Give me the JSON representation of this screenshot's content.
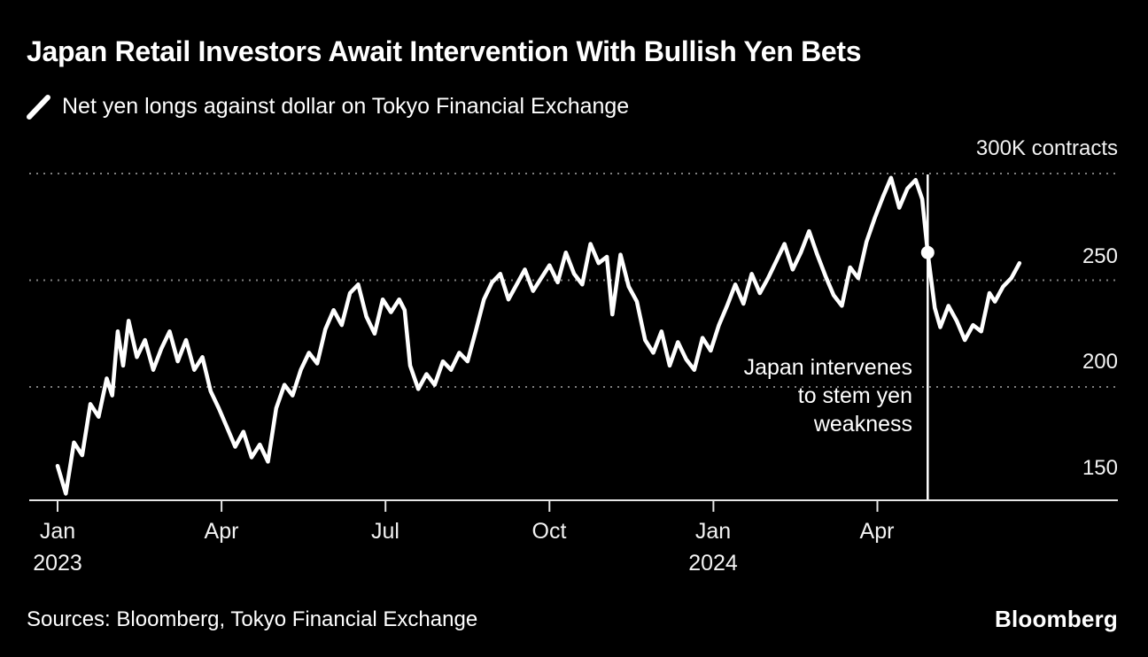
{
  "page": {
    "background": "#000000"
  },
  "header": {
    "title": "Japan Retail Investors Await Intervention With Bullish Yen Bets",
    "legend_label": "Net yen longs against dollar on Tokyo Financial Exchange"
  },
  "chart_data": {
    "type": "line",
    "title": "Japan Retail Investors Await Intervention With Bullish Yen Bets",
    "subtitle": "Net yen longs against dollar on Tokyo Financial Exchange",
    "unit": "K contracts",
    "x_unit": "months since 2023-01",
    "ylim": [
      146,
      305
    ],
    "grid_values": [
      300,
      250,
      200
    ],
    "yticks": [
      {
        "value": 300,
        "label": "300K contracts"
      },
      {
        "value": 250,
        "label": "250"
      },
      {
        "value": 200,
        "label": "200"
      },
      {
        "value": 150,
        "label": "150"
      }
    ],
    "xticks": [
      {
        "month": 0,
        "label": "Jan",
        "sublabel": "2023"
      },
      {
        "month": 3,
        "label": "Apr"
      },
      {
        "month": 6,
        "label": "Jul"
      },
      {
        "month": 9,
        "label": "Oct"
      },
      {
        "month": 12,
        "label": "Jan",
        "sublabel": "2024"
      },
      {
        "month": 15,
        "label": "Apr"
      }
    ],
    "series": [
      {
        "name": "Net yen longs against dollar",
        "points": [
          [
            0,
            163
          ],
          [
            0.15,
            150
          ],
          [
            0.3,
            174
          ],
          [
            0.45,
            168
          ],
          [
            0.6,
            192
          ],
          [
            0.75,
            186
          ],
          [
            0.9,
            204
          ],
          [
            1.0,
            196
          ],
          [
            1.1,
            226
          ],
          [
            1.2,
            210
          ],
          [
            1.3,
            231
          ],
          [
            1.45,
            214
          ],
          [
            1.6,
            222
          ],
          [
            1.75,
            208
          ],
          [
            1.9,
            218
          ],
          [
            2.05,
            226
          ],
          [
            2.2,
            212
          ],
          [
            2.35,
            222
          ],
          [
            2.5,
            208
          ],
          [
            2.65,
            214
          ],
          [
            2.8,
            198
          ],
          [
            2.95,
            190
          ],
          [
            3.1,
            181
          ],
          [
            3.25,
            172
          ],
          [
            3.4,
            179
          ],
          [
            3.55,
            167
          ],
          [
            3.7,
            173
          ],
          [
            3.85,
            165
          ],
          [
            4.0,
            190
          ],
          [
            4.15,
            201
          ],
          [
            4.3,
            196
          ],
          [
            4.45,
            208
          ],
          [
            4.6,
            216
          ],
          [
            4.75,
            211
          ],
          [
            4.9,
            227
          ],
          [
            5.05,
            236
          ],
          [
            5.2,
            229
          ],
          [
            5.35,
            244
          ],
          [
            5.5,
            248
          ],
          [
            5.65,
            233
          ],
          [
            5.8,
            225
          ],
          [
            5.95,
            241
          ],
          [
            6.1,
            235
          ],
          [
            6.25,
            241
          ],
          [
            6.35,
            236
          ],
          [
            6.45,
            210
          ],
          [
            6.6,
            199
          ],
          [
            6.75,
            206
          ],
          [
            6.9,
            201
          ],
          [
            7.05,
            212
          ],
          [
            7.2,
            208
          ],
          [
            7.35,
            216
          ],
          [
            7.5,
            212
          ],
          [
            7.65,
            226
          ],
          [
            7.8,
            241
          ],
          [
            7.95,
            249
          ],
          [
            8.1,
            253
          ],
          [
            8.25,
            241
          ],
          [
            8.4,
            248
          ],
          [
            8.55,
            255
          ],
          [
            8.7,
            245
          ],
          [
            8.85,
            251
          ],
          [
            9.0,
            257
          ],
          [
            9.15,
            249
          ],
          [
            9.3,
            263
          ],
          [
            9.45,
            253
          ],
          [
            9.6,
            248
          ],
          [
            9.75,
            267
          ],
          [
            9.9,
            258
          ],
          [
            10.05,
            261
          ],
          [
            10.15,
            234
          ],
          [
            10.3,
            262
          ],
          [
            10.45,
            247
          ],
          [
            10.6,
            240
          ],
          [
            10.75,
            222
          ],
          [
            10.9,
            216
          ],
          [
            11.05,
            226
          ],
          [
            11.2,
            210
          ],
          [
            11.35,
            221
          ],
          [
            11.5,
            213
          ],
          [
            11.65,
            208
          ],
          [
            11.8,
            223
          ],
          [
            11.95,
            217
          ],
          [
            12.1,
            229
          ],
          [
            12.25,
            238
          ],
          [
            12.4,
            248
          ],
          [
            12.55,
            239
          ],
          [
            12.7,
            253
          ],
          [
            12.85,
            244
          ],
          [
            13.0,
            251
          ],
          [
            13.15,
            259
          ],
          [
            13.3,
            267
          ],
          [
            13.45,
            255
          ],
          [
            13.6,
            263
          ],
          [
            13.75,
            273
          ],
          [
            13.9,
            262
          ],
          [
            14.05,
            252
          ],
          [
            14.2,
            243
          ],
          [
            14.35,
            238
          ],
          [
            14.5,
            256
          ],
          [
            14.65,
            251
          ],
          [
            14.8,
            268
          ],
          [
            14.95,
            279
          ],
          [
            15.1,
            289
          ],
          [
            15.25,
            298
          ],
          [
            15.4,
            284
          ],
          [
            15.55,
            293
          ],
          [
            15.7,
            297
          ],
          [
            15.82,
            288
          ],
          [
            15.92,
            263
          ],
          [
            16.05,
            237
          ],
          [
            16.15,
            228
          ],
          [
            16.3,
            238
          ],
          [
            16.45,
            231
          ],
          [
            16.6,
            222
          ],
          [
            16.75,
            229
          ],
          [
            16.9,
            226
          ],
          [
            17.05,
            244
          ],
          [
            17.15,
            240
          ],
          [
            17.3,
            247
          ],
          [
            17.45,
            251
          ],
          [
            17.6,
            258
          ]
        ]
      }
    ],
    "annotation": {
      "lines": [
        "Japan intervenes",
        "to stem yen",
        "weakness"
      ],
      "text": "Japan intervenes to stem yen weakness",
      "x_month": 15.92,
      "marker": {
        "x_month": 15.92,
        "value": 263
      }
    },
    "colors": {
      "line": "#ffffff",
      "grid": "#7f7f7f",
      "axis": "#e6e6e6",
      "annotation_line": "#ffffff",
      "background": "#000000"
    }
  },
  "footer": {
    "sources": "Sources: Bloomberg, Tokyo Financial Exchange",
    "logo": "Bloomberg"
  }
}
